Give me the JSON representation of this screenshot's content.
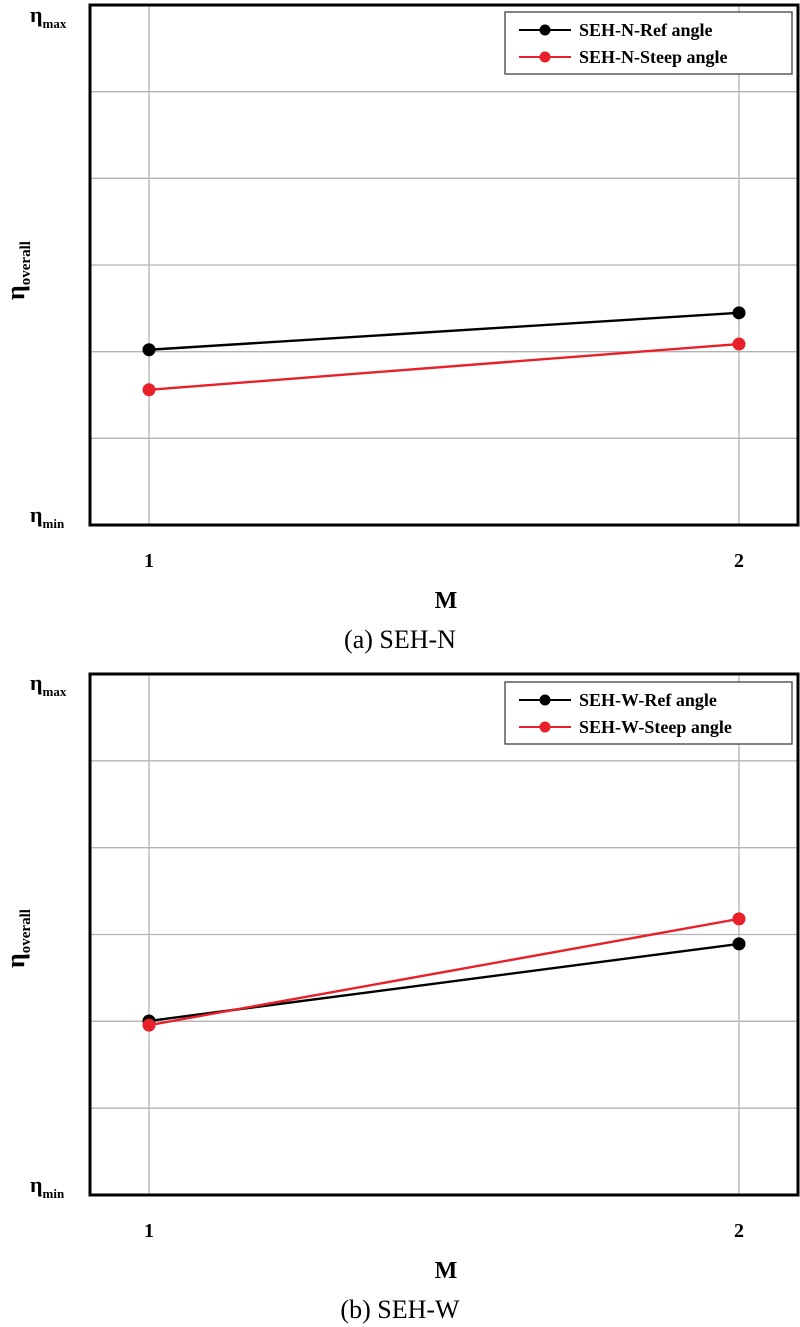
{
  "figure": {
    "panels": [
      {
        "id": "a",
        "caption": "(a)  SEH-N",
        "xlabel": "M",
        "ylabel_main": "η",
        "ylabel_sub": "overall",
        "ymax_label_main": "η",
        "ymax_label_sub": "max",
        "ymin_label_main": "η",
        "ymin_label_sub": "min",
        "xticks": [
          "1",
          "2"
        ],
        "legend": [
          "SEH-N-Ref angle",
          "SEH-N-Steep angle"
        ]
      },
      {
        "id": "b",
        "caption": "(b)  SEH-W",
        "xlabel": "M",
        "ylabel_main": "η",
        "ylabel_sub": "overall",
        "ymax_label_main": "η",
        "ymax_label_sub": "max",
        "ymin_label_main": "η",
        "ymin_label_sub": "min",
        "xticks": [
          "1",
          "2"
        ],
        "legend": [
          "SEH-W-Ref angle",
          "SEH-W-Steep angle"
        ]
      }
    ]
  },
  "colors": {
    "ref": "#000000",
    "steep": "#e8202a",
    "grid": "#b3b3b3",
    "frame": "#000000"
  },
  "chart_data": [
    {
      "type": "line",
      "title": "(a) SEH-N",
      "xlabel": "M",
      "ylabel": "η_overall",
      "x": [
        1,
        2
      ],
      "categories": [
        "1",
        "2"
      ],
      "ylim": [
        "η_min",
        "η_max"
      ],
      "ylim_normalized": [
        0,
        1
      ],
      "y_gridlines": 5,
      "grid": true,
      "legend_position": "upper right",
      "series": [
        {
          "name": "SEH-N-Ref angle",
          "color": "#000000",
          "values": [
            0.337,
            0.408
          ]
        },
        {
          "name": "SEH-N-Steep angle",
          "color": "#e8202a",
          "values": [
            0.26,
            0.348
          ]
        }
      ],
      "note": "Y values normalized: 0 = η_min, 1 = η_max (no numeric ticks shown)"
    },
    {
      "type": "line",
      "title": "(b) SEH-W",
      "xlabel": "M",
      "ylabel": "η_overall",
      "x": [
        1,
        2
      ],
      "categories": [
        "1",
        "2"
      ],
      "ylim": [
        "η_min",
        "η_max"
      ],
      "ylim_normalized": [
        0,
        1
      ],
      "y_gridlines": 5,
      "grid": true,
      "legend_position": "upper right",
      "series": [
        {
          "name": "SEH-W-Ref angle",
          "color": "#000000",
          "values": [
            0.334,
            0.482
          ]
        },
        {
          "name": "SEH-W-Steep angle",
          "color": "#e8202a",
          "values": [
            0.326,
            0.53
          ]
        }
      ],
      "note": "Y values normalized: 0 = η_min, 1 = η_max (no numeric ticks shown)"
    }
  ]
}
